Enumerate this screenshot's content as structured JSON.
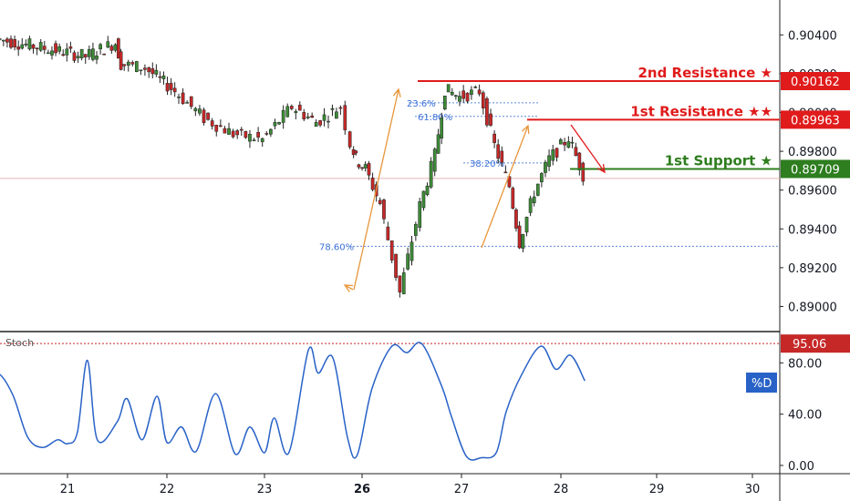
{
  "chart_data": [
    {
      "type": "candlestick",
      "title": "",
      "price_axis": {
        "ticks": [
          "0.90400",
          "0.90200",
          "0.90000",
          "0.89800",
          "0.89600",
          "0.89400",
          "0.89200",
          "0.89000"
        ],
        "tick_values": [
          0.904,
          0.902,
          0.9,
          0.898,
          0.896,
          0.894,
          0.892,
          0.89
        ],
        "range": [
          0.8888,
          0.9058
        ]
      },
      "date_axis": {
        "ticks": [
          "21",
          "22",
          "23",
          "26",
          "27",
          "28",
          "29",
          "30"
        ],
        "bold_ticks": [
          "26"
        ]
      },
      "levels": [
        {
          "id": "r2",
          "label": "2nd Resistance ★",
          "value": 0.90162,
          "value_label": "0.90162",
          "color": "#e01b1b"
        },
        {
          "id": "r1",
          "label": "1st Resistance ★★",
          "value": 0.89963,
          "value_label": "0.89963",
          "color": "#e01b1b"
        },
        {
          "id": "s1",
          "label": "1st Support ★",
          "value": 0.89709,
          "value_label": "0.89709",
          "color": "#2e7d1e"
        }
      ],
      "fib_levels": [
        {
          "label": "78.60%",
          "value": 0.8931
        },
        {
          "label": "38.20%",
          "value": 0.8974
        },
        {
          "label": "61.80%",
          "value": 0.8998
        },
        {
          "label": "23.6%",
          "value": 0.9005
        }
      ],
      "current_price_line": 0.8966,
      "price_series": {
        "x": [
          20.3,
          20.6,
          20.9,
          21.2,
          21.5,
          21.55,
          21.8,
          22.1,
          22.4,
          22.7,
          23.0,
          23.3,
          23.55,
          23.8,
          23.9,
          23.95,
          24.05,
          24.2,
          24.4,
          24.6,
          24.75,
          24.85,
          25.0,
          25.2,
          25.35,
          25.5,
          25.6,
          25.75,
          25.9,
          26.1,
          26.25
        ],
        "y": [
          0.9038,
          0.9035,
          0.9032,
          0.9029,
          0.9036,
          0.9025,
          0.9023,
          0.9011,
          0.8997,
          0.8989,
          0.8986,
          0.9003,
          0.8995,
          0.9003,
          0.8984,
          0.8976,
          0.8971,
          0.8953,
          0.8907,
          0.8952,
          0.8978,
          0.9012,
          0.9008,
          0.9011,
          0.8983,
          0.8962,
          0.8933,
          0.8959,
          0.8976,
          0.8987,
          0.8968
        ]
      },
      "stochastic": {
        "name": "Stoch",
        "series_label": "%D",
        "value_label": "95.06",
        "level": 95.06,
        "ticks": [
          "80.00",
          "40.00",
          "0.00"
        ],
        "tick_values": [
          80,
          40,
          0
        ],
        "range": [
          -5,
          103
        ],
        "x": [
          20.0,
          20.15,
          20.3,
          20.45,
          20.6,
          20.75,
          20.9,
          21.0,
          21.1,
          21.2,
          21.3,
          21.5,
          21.6,
          21.75,
          21.9,
          22.0,
          22.15,
          22.3,
          22.5,
          22.7,
          22.85,
          23.0,
          23.1,
          23.25,
          23.45,
          23.55,
          23.7,
          23.85,
          23.95,
          24.1,
          24.3,
          24.45,
          24.6,
          24.8,
          24.9,
          25.05,
          25.2,
          25.35,
          25.45,
          25.6,
          25.8,
          25.95,
          26.1,
          26.25
        ],
        "values": [
          88,
          66,
          72,
          55,
          22,
          14,
          20,
          17,
          26,
          82,
          20,
          34,
          52,
          20,
          54,
          18,
          30,
          11,
          56,
          9,
          30,
          10,
          37,
          10,
          90,
          72,
          84,
          22,
          8,
          60,
          93,
          88,
          95,
          62,
          38,
          7,
          6,
          10,
          42,
          70,
          93,
          75,
          86,
          66
        ]
      }
    }
  ]
}
